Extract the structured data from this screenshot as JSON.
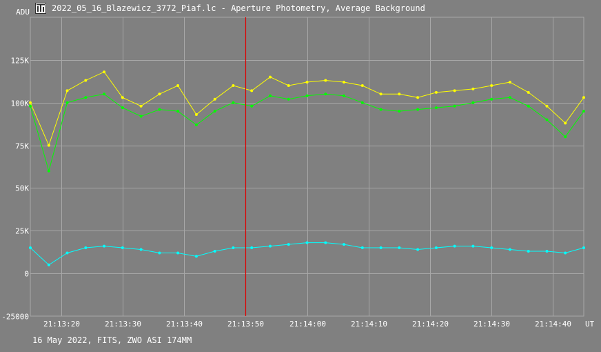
{
  "window": {
    "title": "2022_05_16_Blazewicz_3772_Piaf.lc - Aperture Photometry, Average Background",
    "icon": "photometry-app-icon",
    "footer": "16 May 2022, FITS, ZWO ASI 174MM"
  },
  "colors": {
    "background": "#808080",
    "grid": "#a8a8a8",
    "text": "#ffffff",
    "cursor": "#dd0000"
  },
  "chart_data": {
    "type": "line",
    "ylabel": "ADU",
    "xunit": "UT",
    "ylim": [
      -25000,
      150000
    ],
    "xlim": [
      "21:13:15",
      "21:14:45"
    ],
    "grid": true,
    "yticks": [
      {
        "value": 125000,
        "label": "125K"
      },
      {
        "value": 100000,
        "label": "100K"
      },
      {
        "value": 75000,
        "label": "75K"
      },
      {
        "value": 50000,
        "label": "50K"
      },
      {
        "value": 25000,
        "label": "25K"
      },
      {
        "value": 0,
        "label": "0"
      },
      {
        "value": -25000,
        "label": "-25000"
      }
    ],
    "xticks": [
      "21:13:20",
      "21:13:30",
      "21:13:40",
      "21:13:50",
      "21:14:00",
      "21:14:10",
      "21:14:20",
      "21:14:30",
      "21:14:40"
    ],
    "cursor_time": "21:13:50",
    "series": [
      {
        "color": "#ffff00",
        "x": [
          "21:13:15",
          "21:13:18",
          "21:13:21",
          "21:13:24",
          "21:13:27",
          "21:13:30",
          "21:13:33",
          "21:13:36",
          "21:13:39",
          "21:13:42",
          "21:13:45",
          "21:13:48",
          "21:13:51",
          "21:13:54",
          "21:13:57",
          "21:14:00",
          "21:14:03",
          "21:14:06",
          "21:14:09",
          "21:14:12",
          "21:14:15",
          "21:14:18",
          "21:14:21",
          "21:14:24",
          "21:14:27",
          "21:14:30",
          "21:14:33",
          "21:14:36",
          "21:14:39",
          "21:14:42",
          "21:14:45"
        ],
        "values": [
          100000,
          75000,
          107000,
          113000,
          118000,
          103000,
          98000,
          105000,
          110000,
          93000,
          102000,
          110000,
          107000,
          115000,
          110000,
          112000,
          113000,
          112000,
          110000,
          105000,
          105000,
          103000,
          106000,
          107000,
          108000,
          110000,
          112000,
          106000,
          98000,
          88000,
          103000
        ]
      },
      {
        "color": "#00ff00",
        "x": [
          "21:13:15",
          "21:13:18",
          "21:13:21",
          "21:13:24",
          "21:13:27",
          "21:13:30",
          "21:13:33",
          "21:13:36",
          "21:13:39",
          "21:13:42",
          "21:13:45",
          "21:13:48",
          "21:13:51",
          "21:13:54",
          "21:13:57",
          "21:14:00",
          "21:14:03",
          "21:14:06",
          "21:14:09",
          "21:14:12",
          "21:14:15",
          "21:14:18",
          "21:14:21",
          "21:14:24",
          "21:14:27",
          "21:14:30",
          "21:14:33",
          "21:14:36",
          "21:14:39",
          "21:14:42",
          "21:14:45"
        ],
        "values": [
          98000,
          60000,
          100000,
          103000,
          105000,
          97000,
          92000,
          96000,
          95000,
          87000,
          95000,
          100000,
          98000,
          104000,
          102000,
          104000,
          105000,
          104000,
          100000,
          96000,
          95000,
          96000,
          97000,
          98000,
          100000,
          102000,
          103000,
          98000,
          90000,
          80000,
          95000
        ]
      },
      {
        "color": "#00ffff",
        "x": [
          "21:13:15",
          "21:13:18",
          "21:13:21",
          "21:13:24",
          "21:13:27",
          "21:13:30",
          "21:13:33",
          "21:13:36",
          "21:13:39",
          "21:13:42",
          "21:13:45",
          "21:13:48",
          "21:13:51",
          "21:13:54",
          "21:13:57",
          "21:14:00",
          "21:14:03",
          "21:14:06",
          "21:14:09",
          "21:14:12",
          "21:14:15",
          "21:14:18",
          "21:14:21",
          "21:14:24",
          "21:14:27",
          "21:14:30",
          "21:14:33",
          "21:14:36",
          "21:14:39",
          "21:14:42",
          "21:14:45"
        ],
        "values": [
          15000,
          5000,
          12000,
          15000,
          16000,
          15000,
          14000,
          12000,
          12000,
          10000,
          13000,
          15000,
          15000,
          16000,
          17000,
          18000,
          18000,
          17000,
          15000,
          15000,
          15000,
          14000,
          15000,
          16000,
          16000,
          15000,
          14000,
          13000,
          13000,
          12000,
          15000
        ]
      }
    ]
  }
}
